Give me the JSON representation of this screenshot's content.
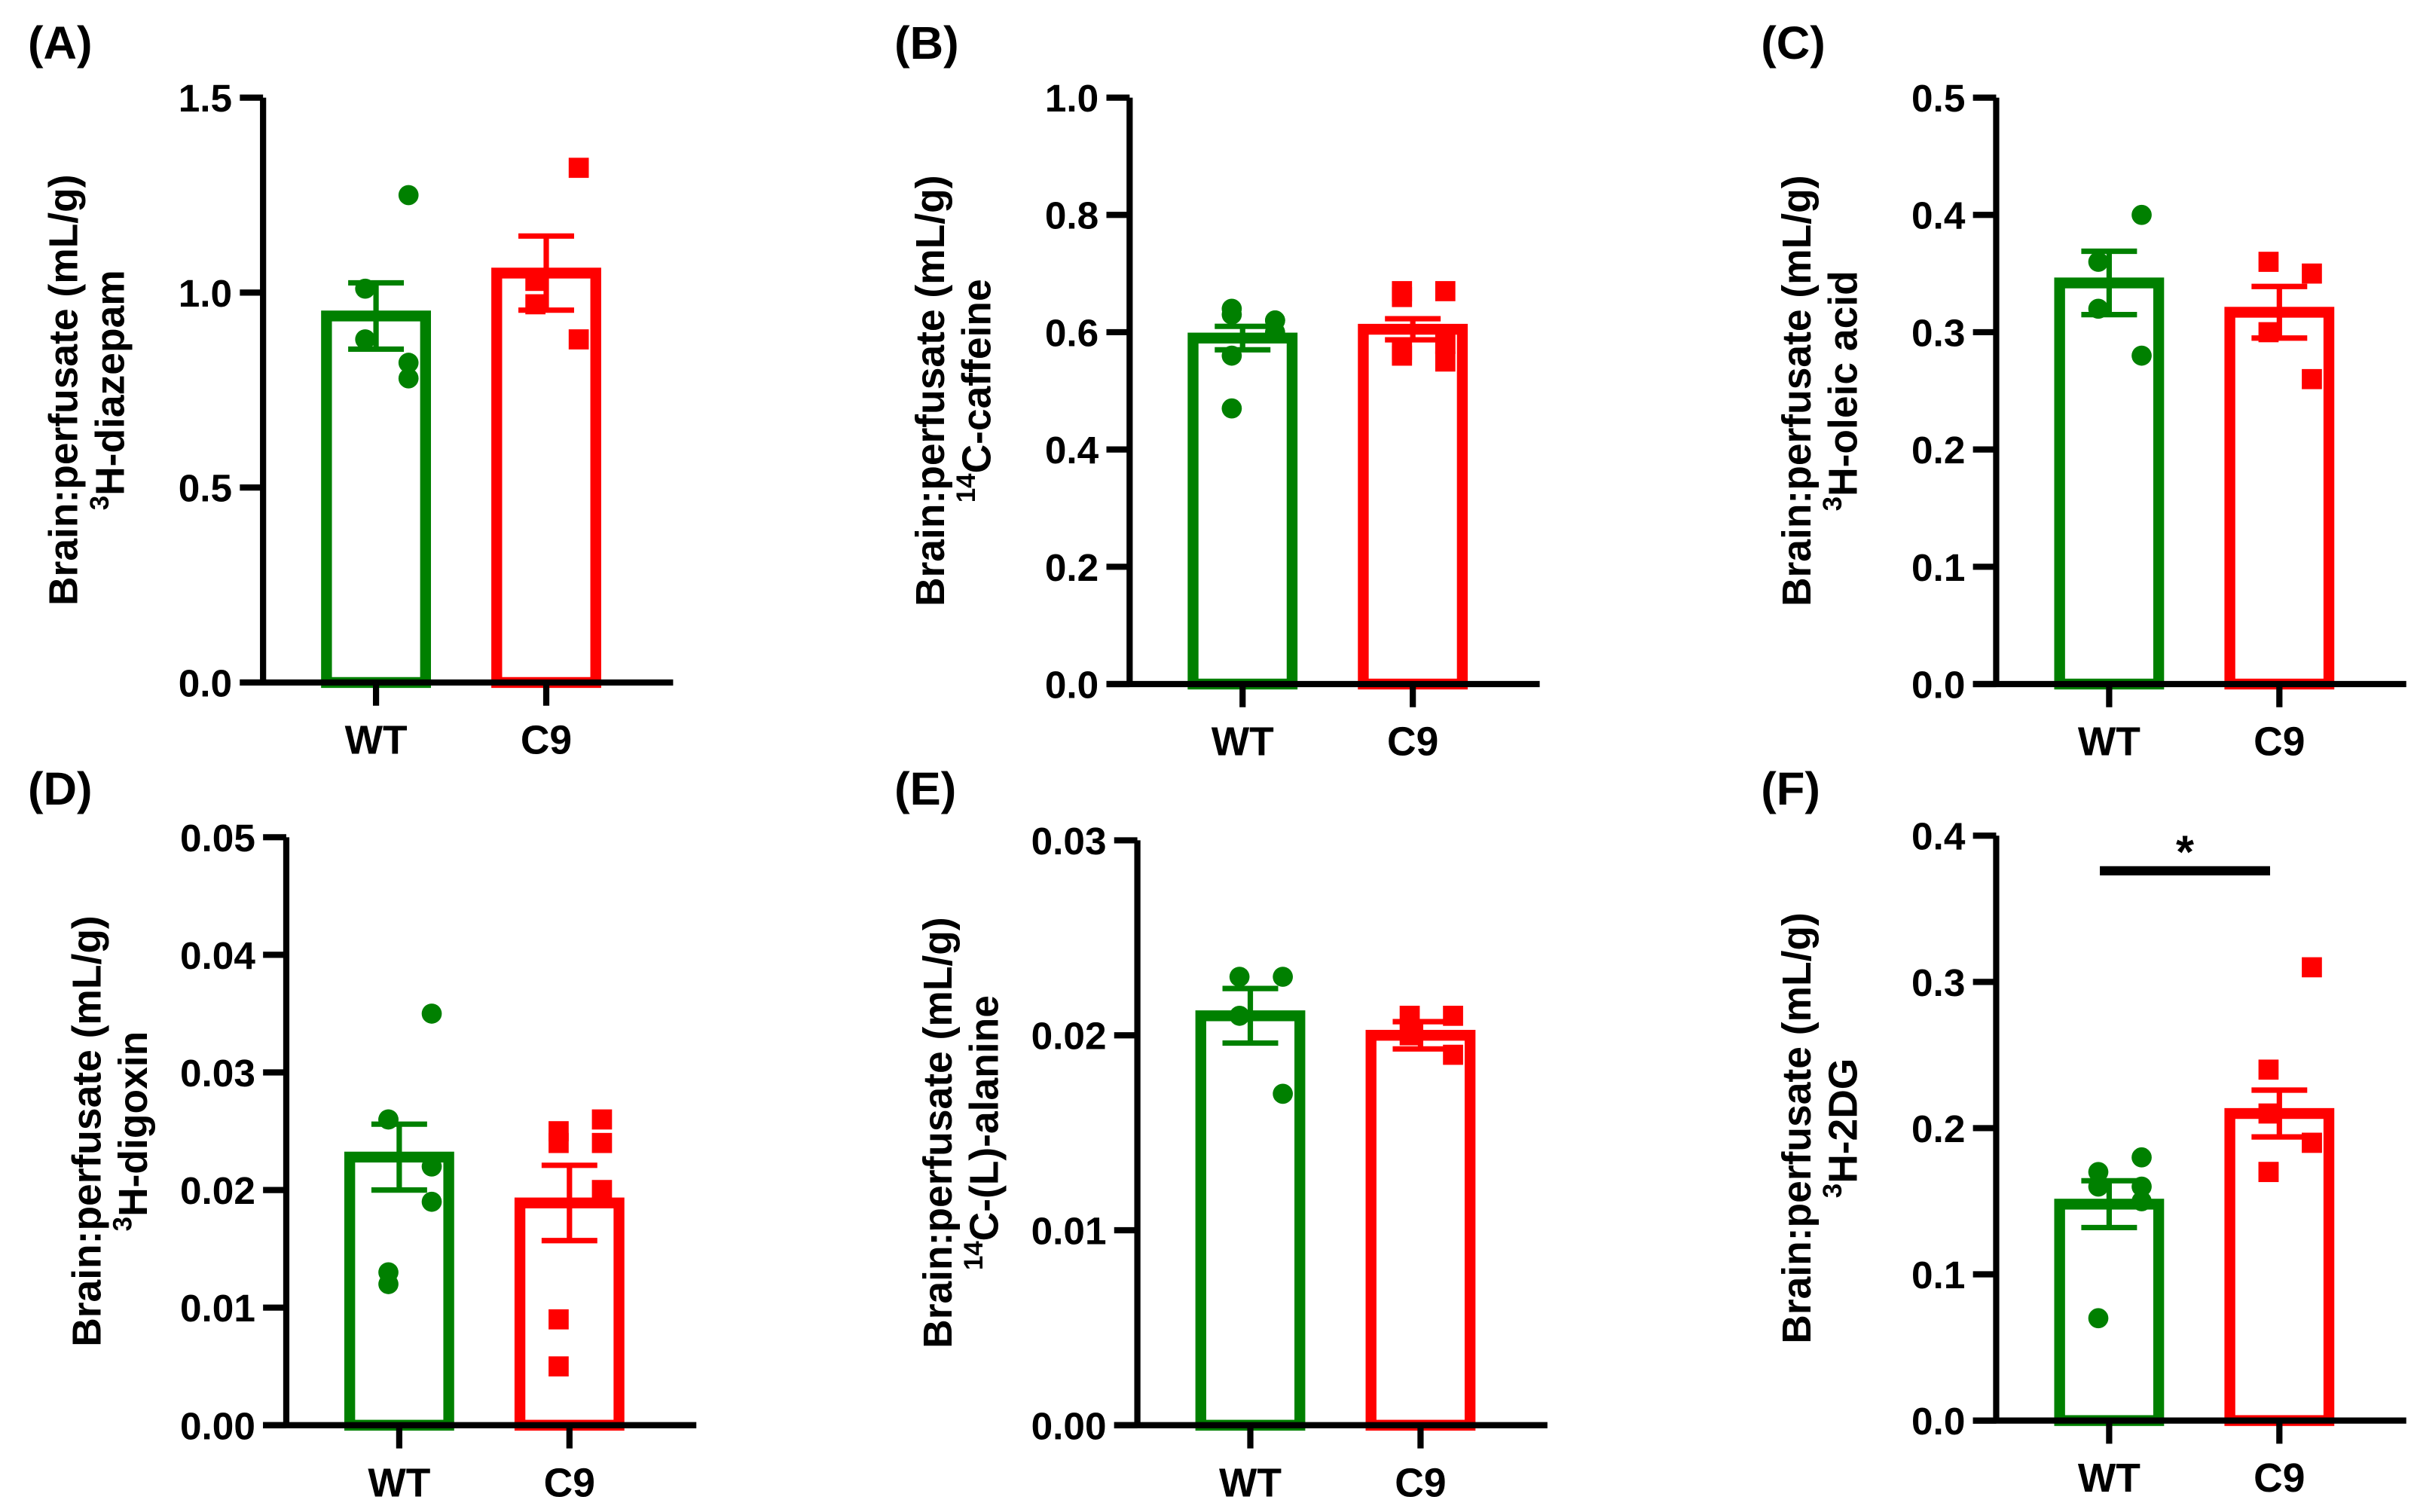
{
  "chart_data": [
    {
      "type": "bar",
      "panel_label": "(A)",
      "ylabel": "Brain:perfusate (mL/g)",
      "ylabel2_sup": "3",
      "ylabel2": "H-diazepam",
      "categories": [
        "WT",
        "C9"
      ],
      "ylim": [
        0,
        1.5
      ],
      "yticks": [
        "0.0",
        "0.5",
        "1.0",
        "1.5"
      ],
      "means": [
        0.94,
        1.05
      ],
      "sem": [
        0.085,
        0.095
      ],
      "points": [
        [
          1.25,
          1.01,
          0.88,
          0.82,
          0.78
        ],
        [
          1.32,
          1.03,
          0.97,
          0.88
        ]
      ]
    },
    {
      "type": "bar",
      "panel_label": "(B)",
      "ylabel": "Brain:perfusate (mL/g)",
      "ylabel2_sup": "14",
      "ylabel2": "C-caffeine",
      "categories": [
        "WT",
        "C9"
      ],
      "ylim": [
        0,
        1.0
      ],
      "yticks": [
        "0.0",
        "0.2",
        "0.4",
        "0.6",
        "0.8",
        "1.0"
      ],
      "means": [
        0.59,
        0.605
      ],
      "sem": [
        0.02,
        0.018
      ],
      "points": [
        [
          0.62,
          0.64,
          0.63,
          0.62,
          0.6,
          0.56,
          0.47
        ],
        [
          0.67,
          0.66,
          0.67,
          0.58,
          0.58,
          0.56,
          0.57,
          0.55
        ]
      ]
    },
    {
      "type": "bar",
      "panel_label": "(C)",
      "ylabel": "Brain:perfusate (mL/g)",
      "ylabel2_sup": "3",
      "ylabel2": "H-oleic acid",
      "categories": [
        "WT",
        "C9"
      ],
      "ylim": [
        0,
        0.5
      ],
      "yticks": [
        "0.0",
        "0.1",
        "0.2",
        "0.3",
        "0.4",
        "0.5"
      ],
      "means": [
        0.342,
        0.317
      ],
      "sem": [
        0.027,
        0.022
      ],
      "points": [
        [
          0.4,
          0.36,
          0.32,
          0.28
        ],
        [
          0.35,
          0.36,
          0.3,
          0.26
        ]
      ]
    },
    {
      "type": "bar",
      "panel_label": "(D)",
      "ylabel": "Brain:perfusate (mL/g)",
      "ylabel2_sup": "3",
      "ylabel2": "H-digoxin",
      "categories": [
        "WT",
        "C9"
      ],
      "ylim": [
        0,
        0.05
      ],
      "yticks": [
        "0.00",
        "0.01",
        "0.02",
        "0.03",
        "0.04",
        "0.05"
      ],
      "means": [
        0.0228,
        0.0189
      ],
      "sem": [
        0.0028,
        0.0032
      ],
      "points": [
        [
          0.035,
          0.026,
          0.026,
          0.022,
          0.019,
          0.013,
          0.012
        ],
        [
          0.026,
          0.025,
          0.024,
          0.024,
          0.02,
          0.009,
          0.005
        ]
      ]
    },
    {
      "type": "bar",
      "panel_label": "(E)",
      "ylabel": "Brain:perfusate (mL/g)",
      "ylabel2_sup": "14",
      "ylabel2": "C-(L)-alanine",
      "categories": [
        "WT",
        "C9"
      ],
      "ylim": [
        0,
        0.03
      ],
      "yticks": [
        "0.00",
        "0.01",
        "0.02",
        "0.03"
      ],
      "means": [
        0.021,
        0.02
      ],
      "sem": [
        0.0014,
        0.0007
      ],
      "points": [
        [
          0.023,
          0.023,
          0.021,
          0.017
        ],
        [
          0.021,
          0.021,
          0.02,
          0.019
        ]
      ]
    },
    {
      "type": "bar",
      "panel_label": "(F)",
      "ylabel": "Brain:perfusate (mL/g)",
      "ylabel2_sup": "3",
      "ylabel2": "H-2DG",
      "categories": [
        "WT",
        "C9"
      ],
      "ylim": [
        0,
        0.4
      ],
      "yticks": [
        "0.0",
        "0.1",
        "0.2",
        "0.3",
        "0.4"
      ],
      "means": [
        0.148,
        0.21
      ],
      "sem": [
        0.016,
        0.016
      ],
      "points": [
        [
          0.18,
          0.17,
          0.16,
          0.16,
          0.15,
          0.07
        ],
        [
          0.31,
          0.24,
          0.21,
          0.19,
          0.19,
          0.17,
          0.17
        ]
      ],
      "significance": "*"
    }
  ],
  "colors": {
    "WT": "#008000",
    "C9": "#ff0000",
    "axis": "#000000"
  }
}
